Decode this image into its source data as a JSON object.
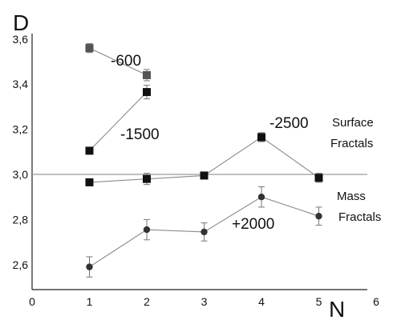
{
  "chart_data": {
    "type": "line",
    "ylabel": "D",
    "xlabel": "N",
    "xlim": [
      0,
      6
    ],
    "ylim": [
      2.5,
      3.7
    ],
    "x_ticks": [
      "0",
      "1",
      "2",
      "3",
      "4",
      "5",
      "6"
    ],
    "y_ticks": [
      "2,6",
      "2,8",
      "3,0",
      "3,2",
      "3,4",
      "3,6"
    ],
    "reference_line_y": 3.0,
    "series": [
      {
        "name": "-600",
        "marker": "square",
        "color": "#555555",
        "x": [
          1,
          2
        ],
        "y": [
          3.56,
          3.44
        ],
        "err": [
          0.02,
          0.025
        ]
      },
      {
        "name": "-1500",
        "marker": "square",
        "color": "#111111",
        "x": [
          1,
          2
        ],
        "y": [
          3.105,
          3.365
        ],
        "err": [
          0.015,
          0.03
        ]
      },
      {
        "name": "-2500",
        "marker": "square",
        "color": "#111111",
        "x": [
          1,
          2,
          3,
          4,
          5
        ],
        "y": [
          2.965,
          2.98,
          2.995,
          3.165,
          2.985
        ],
        "err": [
          0.015,
          0.025,
          0.015,
          0.02,
          0.02
        ]
      },
      {
        "name": "+2000",
        "marker": "circle",
        "color": "#333333",
        "x": [
          1,
          2,
          3,
          4,
          5
        ],
        "y": [
          2.59,
          2.755,
          2.745,
          2.9,
          2.815
        ],
        "err": [
          0.045,
          0.045,
          0.04,
          0.045,
          0.04
        ]
      }
    ],
    "annotations": {
      "surface_line1": "Surface",
      "surface_line2": "Fractals",
      "mass_line1": "Mass",
      "mass_line2": "Fractals"
    }
  }
}
